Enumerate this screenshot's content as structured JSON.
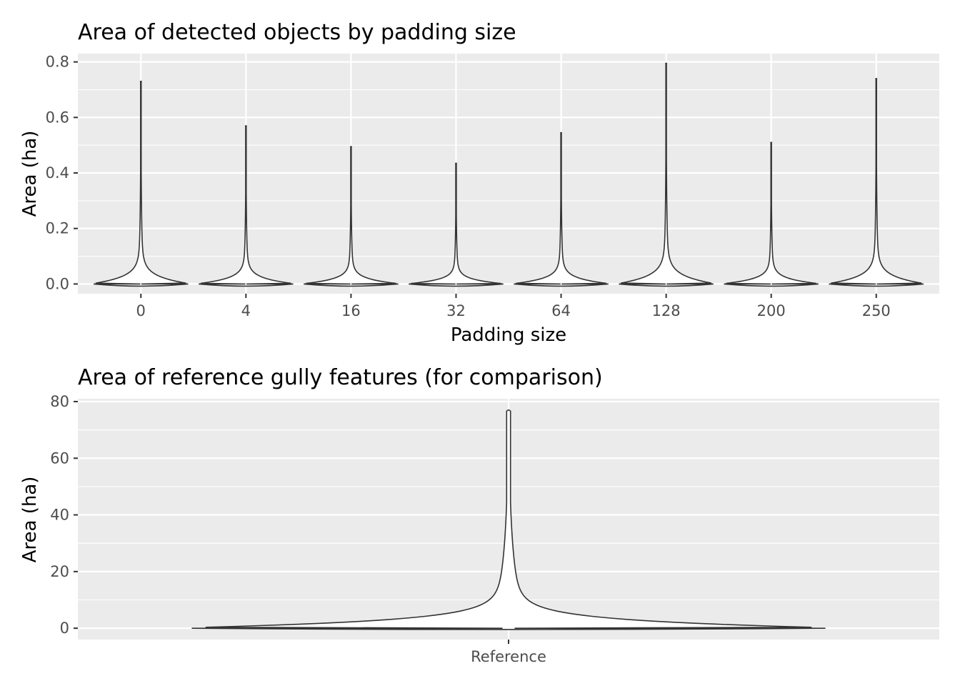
{
  "chart_data": [
    {
      "type": "violin",
      "title": "Area of detected objects by padding size",
      "xlabel": "Padding size",
      "ylabel": "Area (ha)",
      "ylim": [
        -0.035,
        0.83
      ],
      "yticks": [
        0.0,
        0.2,
        0.4,
        0.6,
        0.8
      ],
      "ytick_labels": [
        "0.0",
        "0.2",
        "0.4",
        "0.6",
        "0.8"
      ],
      "categories": [
        "0",
        "4",
        "16",
        "32",
        "64",
        "128",
        "200",
        "250"
      ],
      "max_values": [
        0.73,
        0.57,
        0.495,
        0.435,
        0.545,
        0.795,
        0.51,
        0.74
      ],
      "grid": true,
      "legend": "none"
    },
    {
      "type": "violin",
      "title": "Area of reference gully features (for comparison)",
      "xlabel": "",
      "ylabel": "Area (ha)",
      "ylim": [
        -4,
        81
      ],
      "yticks": [
        0,
        20,
        40,
        60,
        80
      ],
      "ytick_labels": [
        "0",
        "20",
        "40",
        "60",
        "80"
      ],
      "categories": [
        "Reference"
      ],
      "max_values": [
        77
      ],
      "grid": true,
      "legend": "none"
    }
  ]
}
